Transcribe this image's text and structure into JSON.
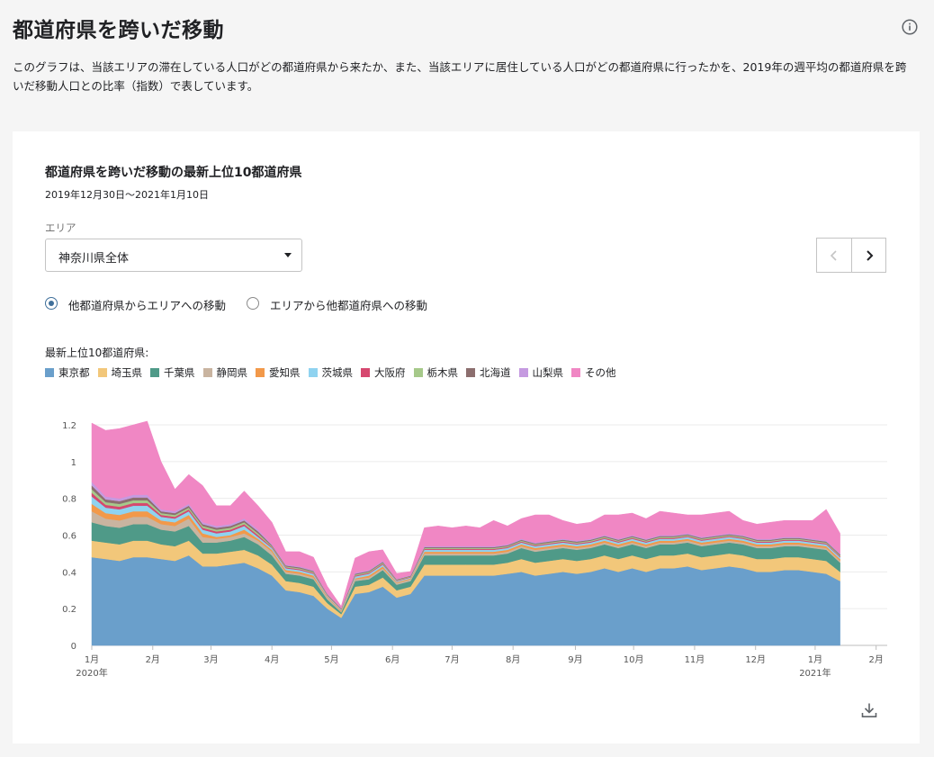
{
  "page": {
    "title": "都道府県を跨いだ移動",
    "description": "このグラフは、当該エリアの滞在している人口がどの都道府県から来たか、また、当該エリアに居住している人口がどの都道府県に行ったかを、2019年の週平均の都道府県を跨いだ移動人口との比率（指数）で表しています。"
  },
  "card": {
    "title": "都道府県を跨いだ移動の最新上位10都道府県",
    "period": "2019年12月30日～2021年1月10日",
    "area_label": "エリア",
    "area_value": "神奈川県全体",
    "radio_options": [
      "他都道府県からエリアへの移動",
      "エリアから他都道府県への移動"
    ],
    "radio_selected": 0,
    "legend_title": "最新上位10都道府県:"
  },
  "chart_data": {
    "type": "area",
    "stacked": true,
    "ylim": [
      0,
      1.2
    ],
    "yticks": [
      "0",
      "0.2",
      "0.4",
      "0.6",
      "0.8",
      "1",
      "1.2"
    ],
    "xticks": [
      {
        "label": "1月",
        "sub": "2020年",
        "week": 0
      },
      {
        "label": "2月",
        "week": 4.4
      },
      {
        "label": "3月",
        "week": 8.6
      },
      {
        "label": "4月",
        "week": 13
      },
      {
        "label": "5月",
        "week": 17.3
      },
      {
        "label": "6月",
        "week": 21.7
      },
      {
        "label": "7月",
        "week": 26
      },
      {
        "label": "8月",
        "week": 30.4
      },
      {
        "label": "9月",
        "week": 34.9
      },
      {
        "label": "10月",
        "week": 39.1
      },
      {
        "label": "11月",
        "week": 43.5
      },
      {
        "label": "12月",
        "week": 47.9
      },
      {
        "label": "1月",
        "sub": "2021年",
        "week": 52.2
      },
      {
        "label": "2月",
        "week": 56.6
      }
    ],
    "x_domain_weeks": [
      0,
      57.4
    ],
    "series": [
      {
        "name": "東京都",
        "color": "#6a9fcb",
        "values": [
          0.48,
          0.47,
          0.46,
          0.48,
          0.48,
          0.47,
          0.46,
          0.49,
          0.43,
          0.43,
          0.44,
          0.45,
          0.42,
          0.38,
          0.3,
          0.29,
          0.27,
          0.2,
          0.15,
          0.28,
          0.29,
          0.32,
          0.26,
          0.28,
          0.38,
          0.38,
          0.38,
          0.38,
          0.38,
          0.38,
          0.39,
          0.4,
          0.38,
          0.39,
          0.4,
          0.39,
          0.4,
          0.42,
          0.4,
          0.42,
          0.4,
          0.42,
          0.42,
          0.43,
          0.41,
          0.42,
          0.43,
          0.42,
          0.4,
          0.4,
          0.41,
          0.41,
          0.4,
          0.39,
          0.35
        ]
      },
      {
        "name": "埼玉県",
        "color": "#f2c77a",
        "values": [
          0.09,
          0.09,
          0.09,
          0.09,
          0.09,
          0.08,
          0.08,
          0.08,
          0.07,
          0.07,
          0.07,
          0.07,
          0.07,
          0.06,
          0.05,
          0.05,
          0.05,
          0.03,
          0.02,
          0.04,
          0.04,
          0.05,
          0.04,
          0.04,
          0.06,
          0.06,
          0.06,
          0.06,
          0.06,
          0.06,
          0.06,
          0.07,
          0.07,
          0.07,
          0.07,
          0.07,
          0.07,
          0.07,
          0.07,
          0.07,
          0.07,
          0.07,
          0.07,
          0.07,
          0.07,
          0.07,
          0.07,
          0.07,
          0.07,
          0.07,
          0.07,
          0.07,
          0.07,
          0.07,
          0.05
        ]
      },
      {
        "name": "千葉県",
        "color": "#4f9a88",
        "values": [
          0.1,
          0.09,
          0.09,
          0.09,
          0.09,
          0.08,
          0.08,
          0.08,
          0.06,
          0.06,
          0.06,
          0.07,
          0.06,
          0.05,
          0.04,
          0.04,
          0.04,
          0.02,
          0.01,
          0.03,
          0.03,
          0.04,
          0.03,
          0.03,
          0.05,
          0.05,
          0.05,
          0.05,
          0.05,
          0.05,
          0.05,
          0.06,
          0.06,
          0.06,
          0.06,
          0.06,
          0.06,
          0.06,
          0.06,
          0.06,
          0.06,
          0.06,
          0.06,
          0.06,
          0.06,
          0.06,
          0.06,
          0.06,
          0.06,
          0.06,
          0.06,
          0.06,
          0.06,
          0.06,
          0.05
        ]
      },
      {
        "name": "静岡県",
        "color": "#c9b4a0",
        "values": [
          0.06,
          0.04,
          0.04,
          0.04,
          0.04,
          0.03,
          0.03,
          0.04,
          0.03,
          0.02,
          0.02,
          0.02,
          0.02,
          0.02,
          0.01,
          0.01,
          0.01,
          0.01,
          0.005,
          0.01,
          0.01,
          0.01,
          0.01,
          0.01,
          0.01,
          0.01,
          0.01,
          0.01,
          0.01,
          0.01,
          0.01,
          0.01,
          0.01,
          0.01,
          0.01,
          0.01,
          0.01,
          0.01,
          0.01,
          0.01,
          0.01,
          0.01,
          0.01,
          0.01,
          0.01,
          0.01,
          0.01,
          0.01,
          0.01,
          0.01,
          0.01,
          0.01,
          0.01,
          0.01,
          0.01
        ]
      },
      {
        "name": "愛知県",
        "color": "#f2994a",
        "values": [
          0.04,
          0.03,
          0.03,
          0.03,
          0.03,
          0.02,
          0.02,
          0.02,
          0.02,
          0.01,
          0.01,
          0.02,
          0.01,
          0.01,
          0.01,
          0.01,
          0.01,
          0.005,
          0.005,
          0.005,
          0.01,
          0.01,
          0.005,
          0.005,
          0.01,
          0.01,
          0.01,
          0.01,
          0.01,
          0.01,
          0.01,
          0.01,
          0.01,
          0.01,
          0.01,
          0.01,
          0.01,
          0.01,
          0.01,
          0.01,
          0.01,
          0.01,
          0.01,
          0.01,
          0.01,
          0.01,
          0.01,
          0.01,
          0.01,
          0.01,
          0.01,
          0.01,
          0.01,
          0.01,
          0.01
        ]
      },
      {
        "name": "茨城県",
        "color": "#8fd3f0",
        "values": [
          0.04,
          0.03,
          0.03,
          0.03,
          0.03,
          0.02,
          0.02,
          0.02,
          0.02,
          0.02,
          0.02,
          0.02,
          0.01,
          0.01,
          0.01,
          0.01,
          0.01,
          0.005,
          0.005,
          0.01,
          0.01,
          0.01,
          0.005,
          0.005,
          0.01,
          0.01,
          0.01,
          0.01,
          0.01,
          0.01,
          0.01,
          0.01,
          0.01,
          0.01,
          0.01,
          0.01,
          0.01,
          0.01,
          0.01,
          0.01,
          0.01,
          0.01,
          0.01,
          0.01,
          0.01,
          0.01,
          0.01,
          0.01,
          0.01,
          0.01,
          0.01,
          0.01,
          0.01,
          0.01,
          0.01
        ]
      },
      {
        "name": "大阪府",
        "color": "#d6486f",
        "values": [
          0.02,
          0.015,
          0.015,
          0.015,
          0.015,
          0.01,
          0.01,
          0.01,
          0.01,
          0.01,
          0.01,
          0.01,
          0.01,
          0.005,
          0.005,
          0.005,
          0.005,
          0.003,
          0.002,
          0.005,
          0.005,
          0.005,
          0.003,
          0.003,
          0.005,
          0.005,
          0.005,
          0.005,
          0.005,
          0.005,
          0.005,
          0.005,
          0.005,
          0.005,
          0.005,
          0.005,
          0.005,
          0.005,
          0.005,
          0.005,
          0.005,
          0.005,
          0.005,
          0.005,
          0.005,
          0.005,
          0.005,
          0.005,
          0.005,
          0.005,
          0.005,
          0.005,
          0.005,
          0.005,
          0.005
        ]
      },
      {
        "name": "栃木県",
        "color": "#a6c98a",
        "values": [
          0.02,
          0.015,
          0.015,
          0.015,
          0.015,
          0.01,
          0.01,
          0.01,
          0.01,
          0.01,
          0.01,
          0.01,
          0.01,
          0.005,
          0.005,
          0.005,
          0.005,
          0.003,
          0.002,
          0.005,
          0.005,
          0.005,
          0.003,
          0.003,
          0.005,
          0.005,
          0.005,
          0.005,
          0.005,
          0.005,
          0.005,
          0.005,
          0.005,
          0.005,
          0.005,
          0.005,
          0.005,
          0.005,
          0.005,
          0.005,
          0.005,
          0.005,
          0.005,
          0.005,
          0.005,
          0.005,
          0.005,
          0.005,
          0.005,
          0.005,
          0.005,
          0.005,
          0.005,
          0.005,
          0.005
        ]
      },
      {
        "name": "北海道",
        "color": "#8c6e6e",
        "values": [
          0.02,
          0.015,
          0.015,
          0.015,
          0.015,
          0.01,
          0.01,
          0.01,
          0.01,
          0.01,
          0.01,
          0.01,
          0.01,
          0.005,
          0.005,
          0.005,
          0.005,
          0.003,
          0.002,
          0.005,
          0.005,
          0.005,
          0.003,
          0.003,
          0.005,
          0.005,
          0.005,
          0.005,
          0.005,
          0.005,
          0.005,
          0.005,
          0.005,
          0.005,
          0.005,
          0.005,
          0.005,
          0.005,
          0.005,
          0.005,
          0.005,
          0.005,
          0.005,
          0.005,
          0.005,
          0.005,
          0.005,
          0.005,
          0.005,
          0.005,
          0.005,
          0.005,
          0.005,
          0.005,
          0.005
        ]
      },
      {
        "name": "山梨県",
        "color": "#c59ae0",
        "values": [
          0.02,
          0.015,
          0.015,
          0.015,
          0.015,
          0.01,
          0.01,
          0.01,
          0.01,
          0.01,
          0.01,
          0.01,
          0.01,
          0.005,
          0.005,
          0.005,
          0.005,
          0.003,
          0.002,
          0.005,
          0.005,
          0.005,
          0.003,
          0.003,
          0.005,
          0.005,
          0.005,
          0.005,
          0.005,
          0.005,
          0.005,
          0.005,
          0.005,
          0.005,
          0.005,
          0.005,
          0.005,
          0.005,
          0.005,
          0.005,
          0.005,
          0.005,
          0.005,
          0.005,
          0.005,
          0.005,
          0.005,
          0.005,
          0.005,
          0.005,
          0.005,
          0.005,
          0.005,
          0.005,
          0.005
        ]
      },
      {
        "name": "その他",
        "color": "#f087c4",
        "values": [
          0.32,
          0.36,
          0.38,
          0.38,
          0.4,
          0.26,
          0.12,
          0.16,
          0.2,
          0.11,
          0.1,
          0.15,
          0.13,
          0.12,
          0.07,
          0.08,
          0.07,
          0.04,
          0.01,
          0.08,
          0.1,
          0.06,
          0.03,
          0.02,
          0.1,
          0.11,
          0.1,
          0.11,
          0.1,
          0.14,
          0.1,
          0.11,
          0.15,
          0.14,
          0.1,
          0.09,
          0.09,
          0.11,
          0.13,
          0.12,
          0.11,
          0.13,
          0.12,
          0.1,
          0.12,
          0.12,
          0.12,
          0.08,
          0.08,
          0.09,
          0.09,
          0.09,
          0.1,
          0.17,
          0.11
        ]
      }
    ]
  },
  "icons": {
    "info": "info-icon",
    "download": "download-icon",
    "prev": "chevron-left-icon",
    "next": "chevron-right-icon"
  }
}
